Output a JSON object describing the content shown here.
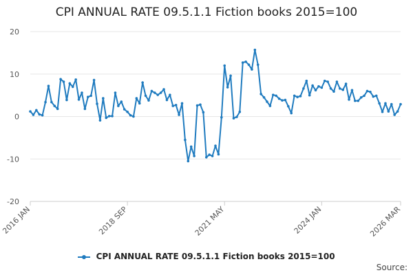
{
  "chart_data": {
    "type": "line",
    "title": "CPI ANNUAL RATE 09.5.1.1 Fiction books 2015=100",
    "xlabel": "",
    "ylabel": "",
    "ylim": [
      -20,
      20
    ],
    "yticks": [
      20,
      10,
      0,
      -10,
      -20
    ],
    "xticks": [
      "2016 JAN",
      "2018 SEP",
      "2021 MAY",
      "2024 JAN",
      "2026 MAR"
    ],
    "grid": "horizontal",
    "legend_position": "bottom",
    "start": "2016 JAN",
    "end": "2026 MAR",
    "series": [
      {
        "name": "CPI ANNUAL RATE 09.5.1.1 Fiction books 2015=100",
        "color": "#1f7bbf",
        "values": [
          1.2,
          0.4,
          1.5,
          0.5,
          0.3,
          3.4,
          7.2,
          3.4,
          2.5,
          1.8,
          8.8,
          8.2,
          3.9,
          7.8,
          7.0,
          8.7,
          4.0,
          5.6,
          1.8,
          4.6,
          4.9,
          8.6,
          3.0,
          -0.9,
          4.3,
          -0.3,
          0.1,
          0.1,
          5.6,
          2.5,
          3.5,
          1.7,
          1.1,
          0.3,
          0.0,
          4.3,
          3.1,
          8.0,
          4.9,
          3.8,
          6.0,
          5.6,
          5.1,
          5.6,
          6.4,
          3.9,
          5.1,
          2.5,
          2.7,
          0.4,
          3.1,
          -5.5,
          -10.5,
          -7.1,
          -9.3,
          2.6,
          2.8,
          1.0,
          -9.6,
          -9.0,
          -9.3,
          -6.9,
          -8.9,
          -0.2,
          12.0,
          6.9,
          9.6,
          -0.4,
          -0.1,
          1.1,
          12.7,
          12.9,
          12.2,
          11.1,
          15.7,
          12.2,
          5.3,
          4.5,
          3.5,
          2.5,
          5.1,
          4.9,
          4.2,
          3.8,
          3.9,
          2.4,
          0.8,
          4.9,
          4.6,
          4.8,
          6.6,
          8.4,
          5.0,
          7.3,
          6.2,
          7.1,
          6.8,
          8.4,
          8.2,
          6.6,
          5.9,
          8.2,
          6.6,
          6.3,
          7.7,
          4.0,
          6.2,
          3.7,
          3.7,
          4.5,
          4.9,
          6.0,
          5.8,
          4.7,
          4.9,
          3.1,
          1.1,
          3.1,
          1.2,
          2.9,
          0.4,
          1.2,
          2.9
        ]
      }
    ]
  },
  "source_label": "Source:"
}
